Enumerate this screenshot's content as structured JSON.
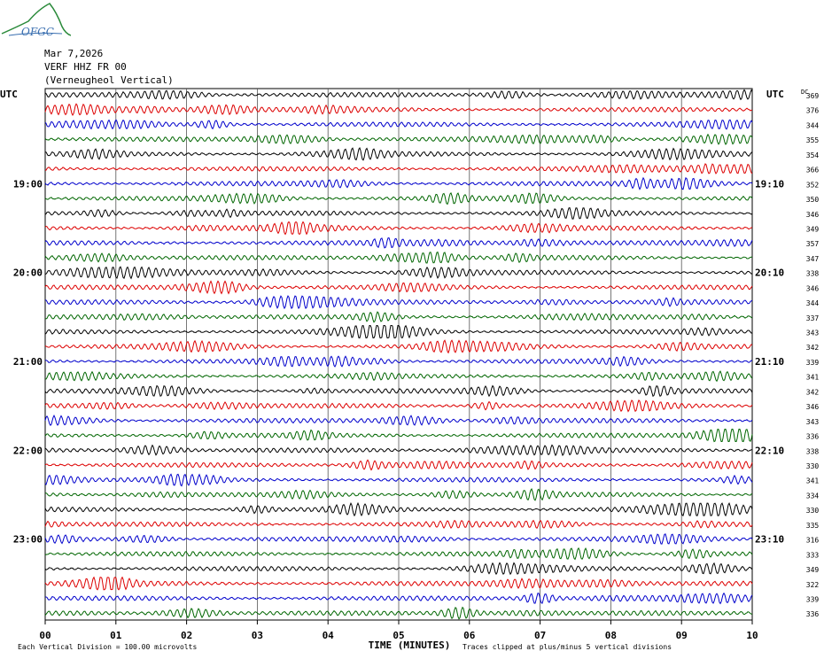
{
  "logo": {
    "text": "OFGC"
  },
  "header": {
    "date": "Mar 7,2026",
    "station": "VERF HHZ FR 00",
    "location": "(Verneugheol Vertical)"
  },
  "chart_data": {
    "type": "line",
    "title": "VERF HHZ FR 00",
    "xlabel": "TIME (MINUTES)",
    "x_ticks": [
      "00",
      "01",
      "02",
      "03",
      "04",
      "05",
      "06",
      "07",
      "08",
      "09",
      "10"
    ],
    "xlim": [
      0,
      10
    ],
    "utc_label_left": "UTC",
    "utc_label_right": "UTC",
    "dc_label": "DC",
    "left_hour_labels": [
      {
        "row": 6,
        "text": "19:00"
      },
      {
        "row": 12,
        "text": "20:00"
      },
      {
        "row": 18,
        "text": "21:00"
      },
      {
        "row": 24,
        "text": "22:00"
      },
      {
        "row": 30,
        "text": "23:00"
      }
    ],
    "right_hour_labels": [
      {
        "row": 6,
        "text": "19:10"
      },
      {
        "row": 12,
        "text": "20:10"
      },
      {
        "row": 18,
        "text": "21:10"
      },
      {
        "row": 24,
        "text": "22:10"
      },
      {
        "row": 30,
        "text": "23:10"
      }
    ],
    "trace_colors": [
      "#000000",
      "#dd0000",
      "#0000cc",
      "#006600"
    ],
    "dc_offsets": [
      369,
      376,
      344,
      355,
      354,
      366,
      352,
      350,
      346,
      349,
      357,
      347,
      338,
      346,
      344,
      337,
      343,
      342,
      339,
      341,
      342,
      346,
      343,
      336,
      338,
      330,
      341,
      334,
      330,
      335,
      316,
      333,
      349,
      322,
      339,
      336
    ],
    "footer_left": "Each Vertical Division =  100.00 microvolts",
    "footer_right": "Traces clipped at plus/minus 5 vertical divisions"
  }
}
